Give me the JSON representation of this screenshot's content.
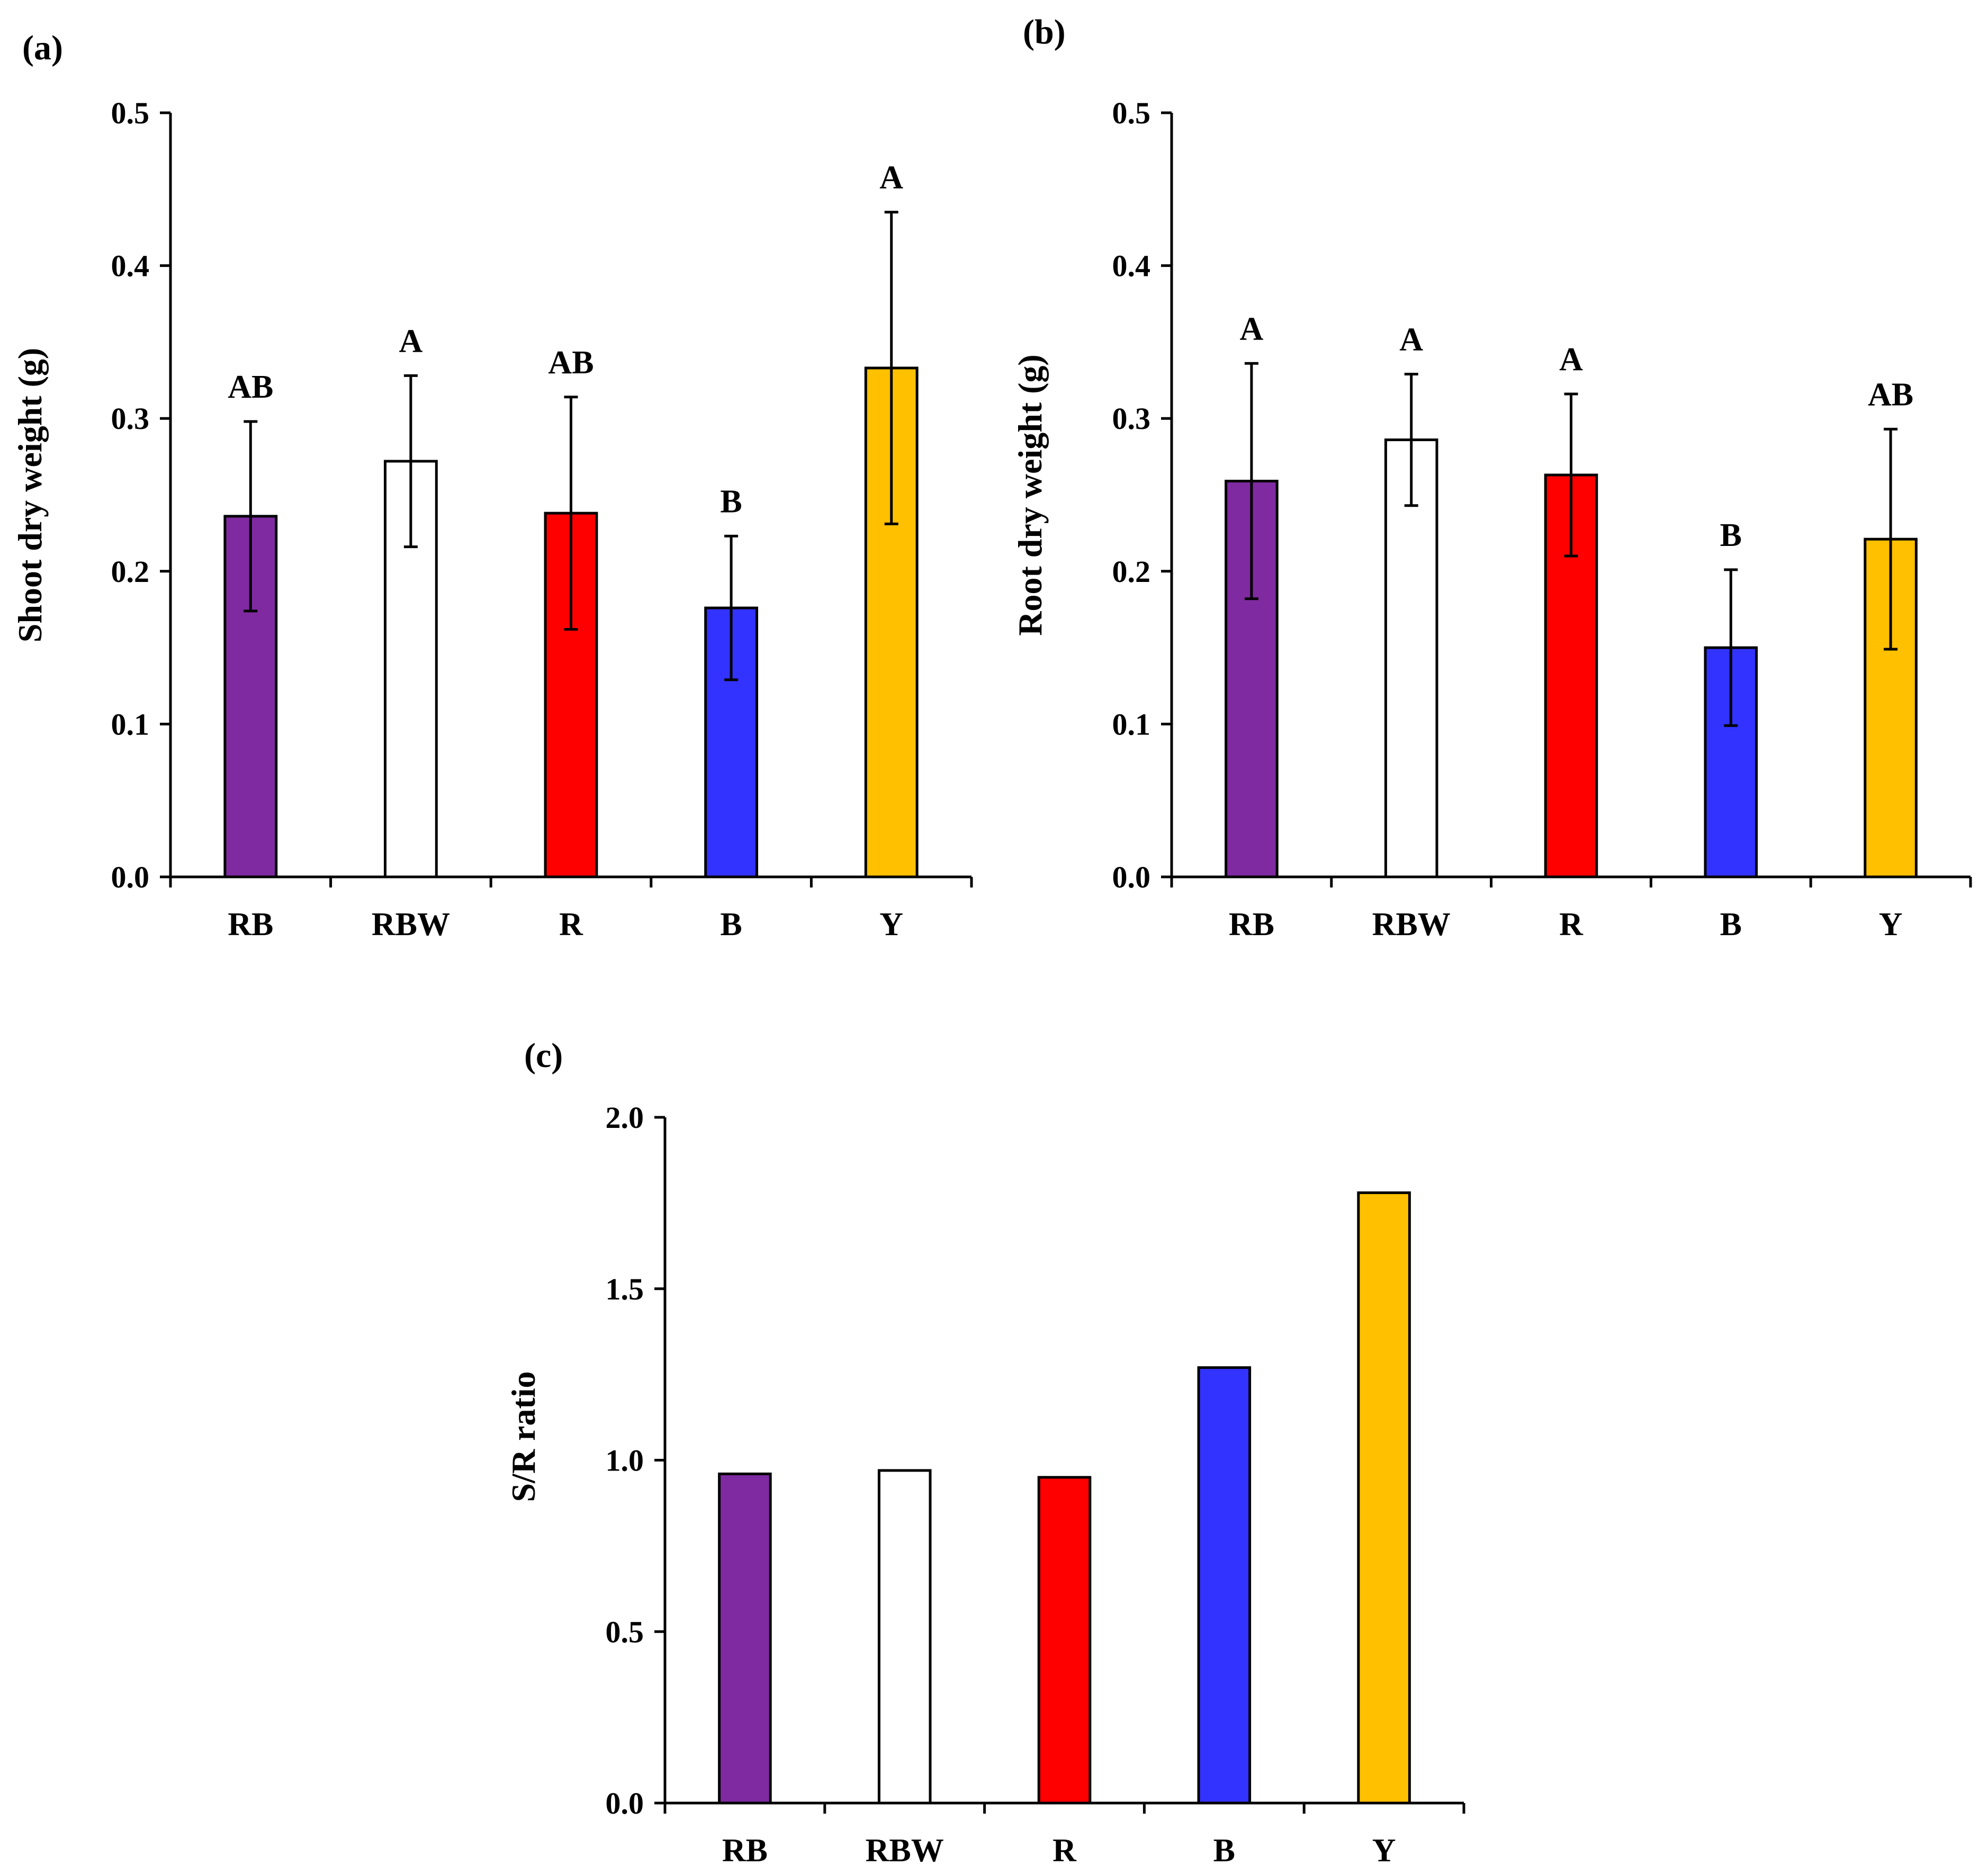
{
  "chart_data": [
    {
      "panel_label": "(a)",
      "type": "bar",
      "categories": [
        "RB",
        "RBW",
        "R",
        "B",
        "Y"
      ],
      "values": [
        0.236,
        0.272,
        0.238,
        0.176,
        0.333
      ],
      "errors": [
        0.062,
        0.056,
        0.076,
        0.047,
        0.102
      ],
      "significance": [
        "AB",
        "A",
        "AB",
        "B",
        "A"
      ],
      "colors": [
        "#7f2aa1",
        "#ffffff",
        "#ff0000",
        "#3333ff",
        "#ffc000"
      ],
      "ylabel": "Shoot dry weight (g)",
      "xlabel": "",
      "ylim": [
        0,
        0.5
      ],
      "yticks": [
        "0.0",
        "0.1",
        "0.2",
        "0.3",
        "0.4",
        "0.5"
      ]
    },
    {
      "panel_label": "(b)",
      "type": "bar",
      "categories": [
        "RB",
        "RBW",
        "R",
        "B",
        "Y"
      ],
      "values": [
        0.259,
        0.286,
        0.263,
        0.15,
        0.221
      ],
      "errors": [
        0.077,
        0.043,
        0.053,
        0.051,
        0.072
      ],
      "significance": [
        "A",
        "A",
        "A",
        "B",
        "AB"
      ],
      "colors": [
        "#7f2aa1",
        "#ffffff",
        "#ff0000",
        "#3333ff",
        "#ffc000"
      ],
      "ylabel": "Root dry weight (g)",
      "xlabel": "",
      "ylim": [
        0,
        0.5
      ],
      "yticks": [
        "0.0",
        "0.1",
        "0.2",
        "0.3",
        "0.4",
        "0.5"
      ]
    },
    {
      "panel_label": "(c)",
      "type": "bar",
      "categories": [
        "RB",
        "RBW",
        "R",
        "B",
        "Y"
      ],
      "values": [
        0.96,
        0.97,
        0.95,
        1.27,
        1.78
      ],
      "errors": null,
      "significance": null,
      "colors": [
        "#7f2aa1",
        "#ffffff",
        "#ff0000",
        "#3333ff",
        "#ffc000"
      ],
      "ylabel": "S/R ratio",
      "xlabel": "",
      "ylim": [
        0,
        2.0
      ],
      "yticks": [
        "0.0",
        "0.5",
        "1.0",
        "1.5",
        "2.0"
      ]
    }
  ]
}
